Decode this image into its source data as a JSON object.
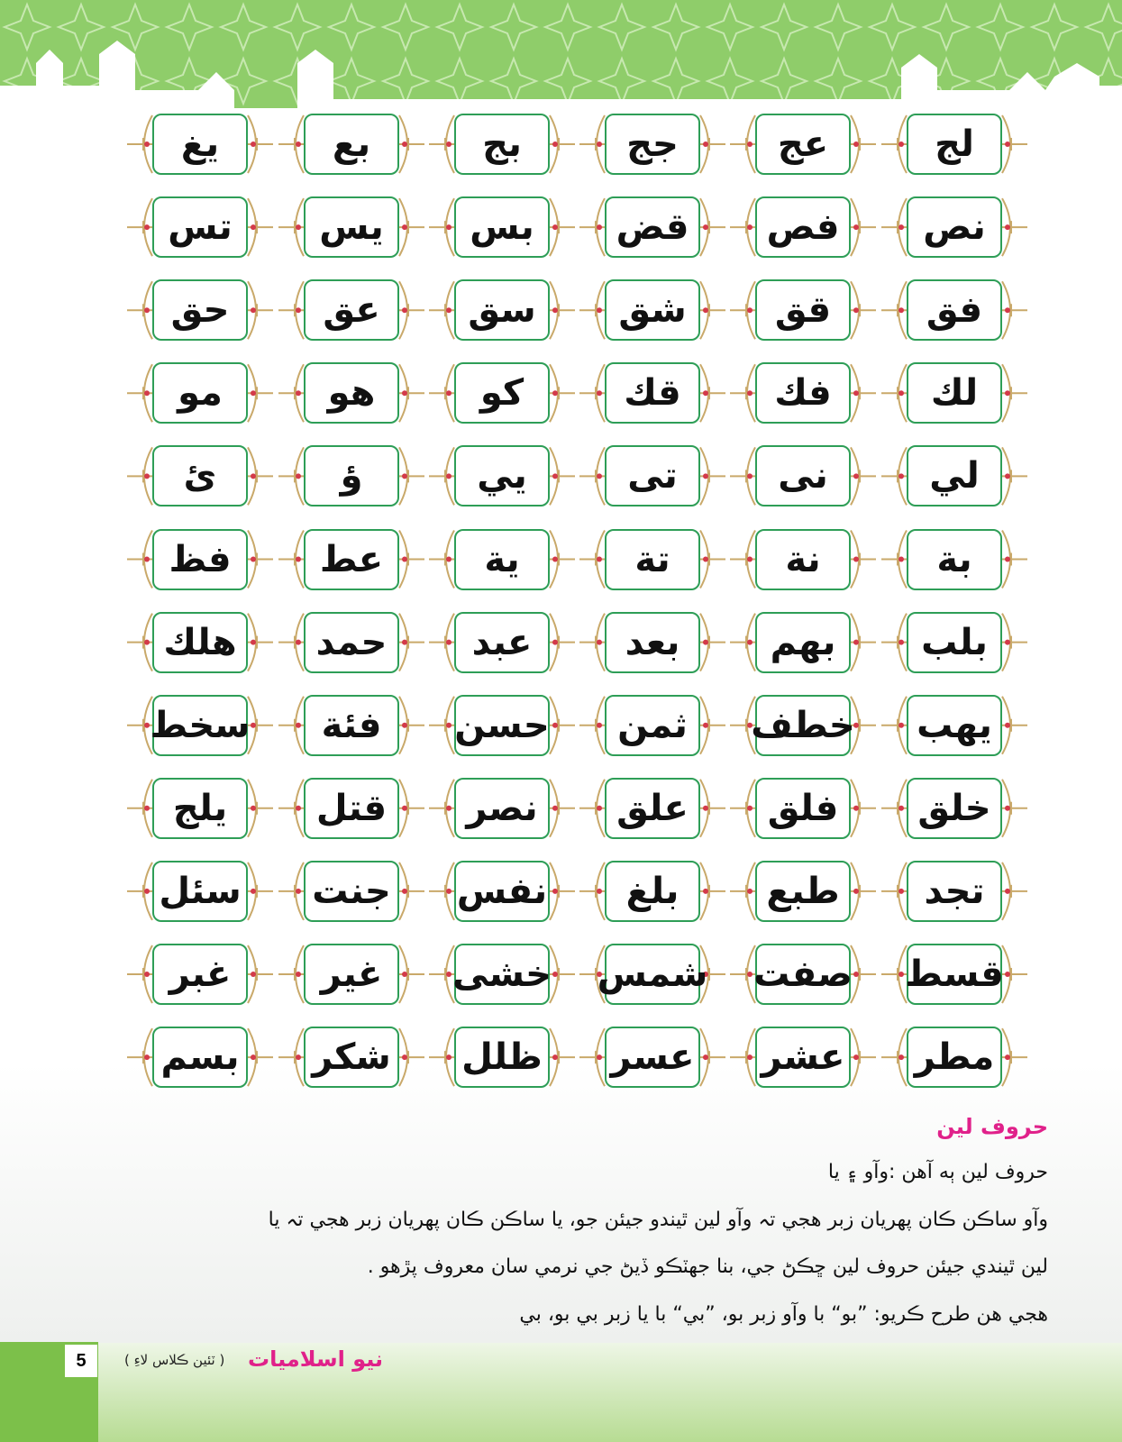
{
  "grid": {
    "rows": [
      [
        "لج",
        "عج",
        "جج",
        "بج",
        "بع",
        "يغ"
      ],
      [
        "نص",
        "فص",
        "قض",
        "بس",
        "يس",
        "تس"
      ],
      [
        "فق",
        "قق",
        "شق",
        "سق",
        "عق",
        "حق"
      ],
      [
        "لك",
        "فك",
        "قك",
        "كو",
        "هو",
        "مو"
      ],
      [
        "لي",
        "نى",
        "تى",
        "يي",
        "ؤ",
        "ئ"
      ],
      [
        "بة",
        "نة",
        "تة",
        "ية",
        "عط",
        "فظ"
      ],
      [
        "بلب",
        "بهم",
        "بعد",
        "عبد",
        "حمد",
        "هلك"
      ],
      [
        "يهب",
        "خطف",
        "ثمن",
        "حسن",
        "فئة",
        "سخط"
      ],
      [
        "خلق",
        "فلق",
        "علق",
        "نصر",
        "قتل",
        "يلج"
      ],
      [
        "تجد",
        "طبع",
        "بلغ",
        "نفس",
        "جنت",
        "سئل"
      ],
      [
        "قسط",
        "صفت",
        "شمس",
        "خشى",
        "غير",
        "غبر"
      ],
      [
        "مطر",
        "عشر",
        "عسر",
        "ظلل",
        "شكر",
        "بسم"
      ]
    ]
  },
  "section": {
    "heading": "حروف لين",
    "lines": [
      "حروف لين ٻه آهن :وآو ۽ يا",
      "وآو ساڪن ڪان پهريان زبر هجي تہ وآو لين ٿيندو جيئن جو، يا ساڪن  ڪان پهريان زبر هجي تہ يا",
      "لين ٿيندي جيئن حروف لين ڇڪڻ جي، بنا جهٽڪو ڏيڻ جي نرمي سان معروف پڙهو .",
      "هجي هن طرح ڪريو: ”بو“ با وآو زبر بو، ”بي“ با يا زبر بي بو، بي"
    ]
  },
  "footer": {
    "page_number": "5",
    "title": "نيو اسلاميات",
    "subtitle": "( ٽئين ڪلاس لاءِ )"
  }
}
